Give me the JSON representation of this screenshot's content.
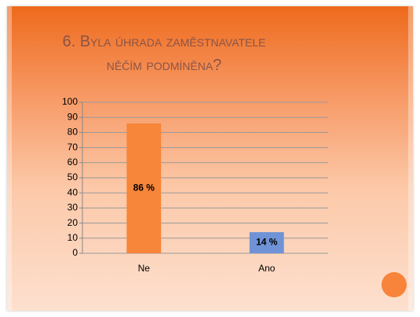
{
  "chart_data": {
    "type": "bar",
    "title": "6. Byla úhrada zaměstnavatele něčím podmíněna?",
    "categories": [
      "Ne",
      "Ano"
    ],
    "values": [
      86,
      14
    ],
    "value_labels": [
      "86 %",
      "14 %"
    ],
    "colors": [
      "#f7853a",
      "#6f93d6"
    ],
    "ylim": [
      0,
      100
    ],
    "yticks": [
      0,
      10,
      20,
      30,
      40,
      50,
      60,
      70,
      80,
      90,
      100
    ],
    "grid": true
  }
}
